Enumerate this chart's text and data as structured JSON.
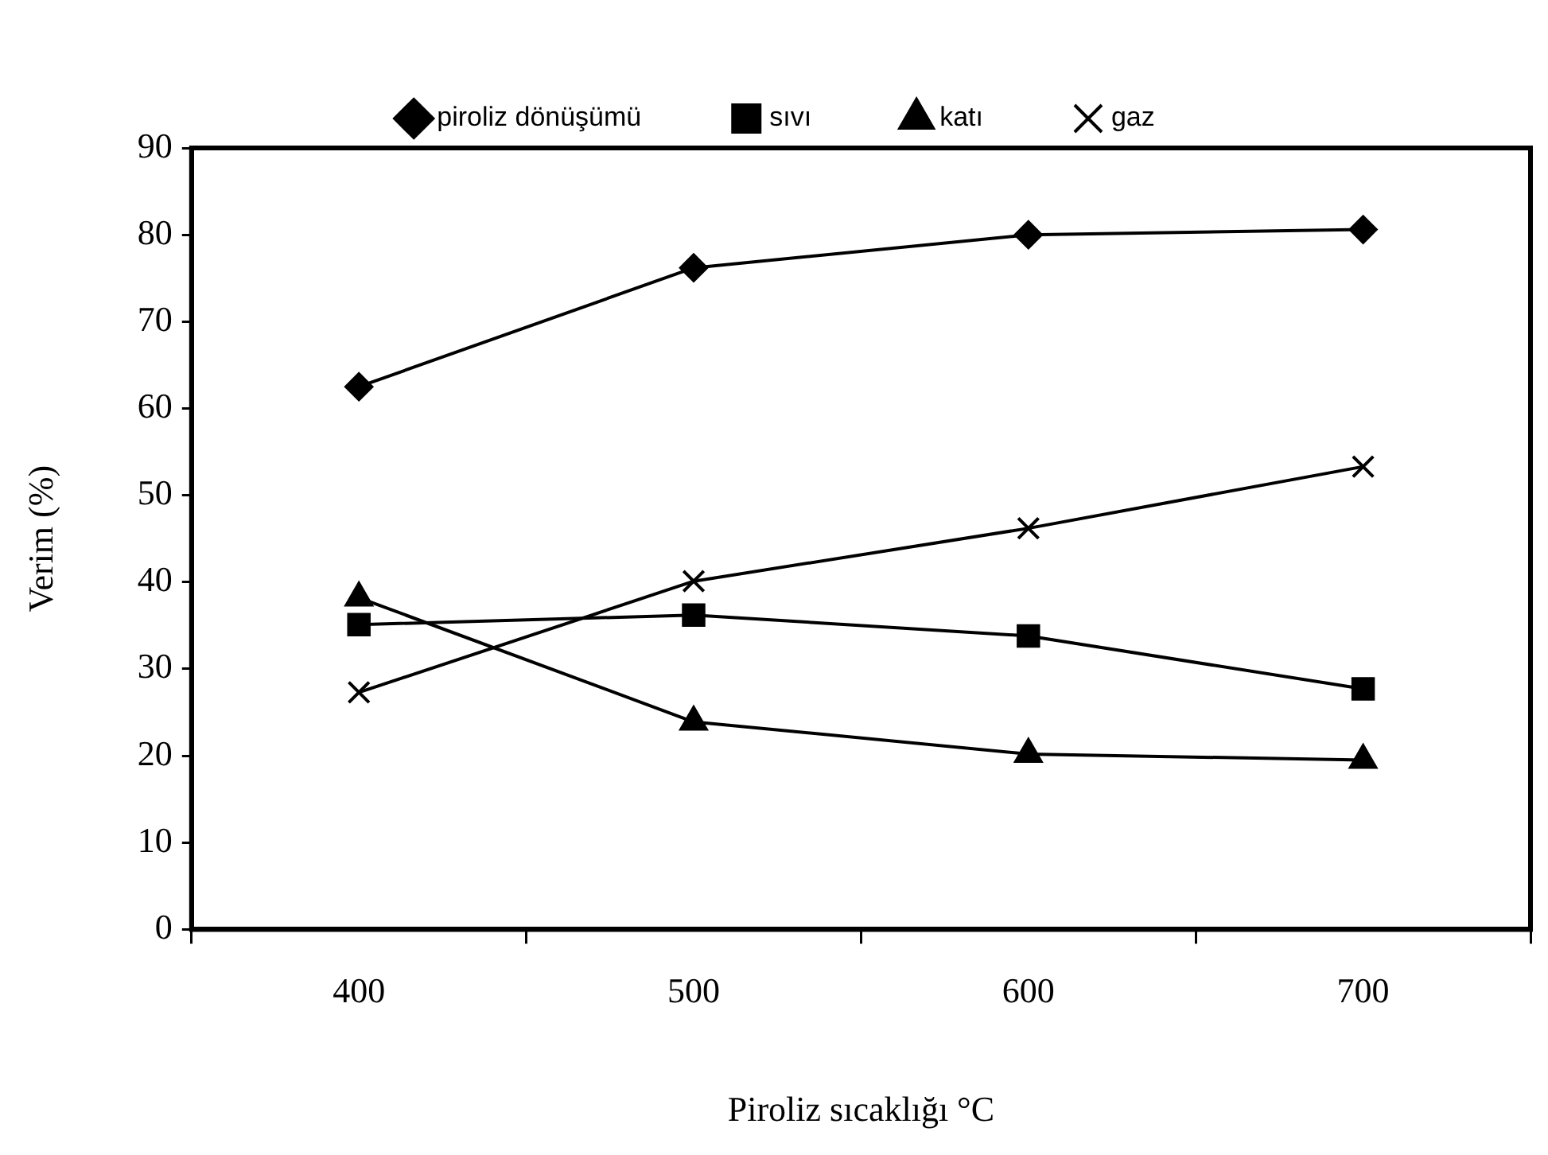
{
  "chart_data": {
    "type": "line",
    "xlabel": "Piroliz sıcaklığı °C",
    "ylabel": "Verim (%)",
    "categories": [
      "400",
      "500",
      "600",
      "700"
    ],
    "series": [
      {
        "name": "piroliz dönüşümü",
        "color": "#000000",
        "marker": "diamond",
        "values": [
          62.5,
          76.2,
          80.0,
          80.6
        ]
      },
      {
        "name": "sıvı",
        "color": "#000000",
        "marker": "square",
        "values": [
          35.1,
          36.2,
          33.8,
          27.7
        ]
      },
      {
        "name": "katı",
        "color": "#000000",
        "marker": "triangle",
        "values": [
          38.2,
          23.9,
          20.2,
          19.5
        ]
      },
      {
        "name": "gaz",
        "color": "#000000",
        "marker": "cross",
        "values": [
          27.3,
          40.1,
          46.2,
          53.3
        ]
      }
    ],
    "ylim": [
      0,
      90
    ],
    "yticks": [
      0,
      10,
      20,
      30,
      40,
      50,
      60,
      70,
      80,
      90
    ],
    "grid": false,
    "legend": "top",
    "line_style": "solid"
  }
}
